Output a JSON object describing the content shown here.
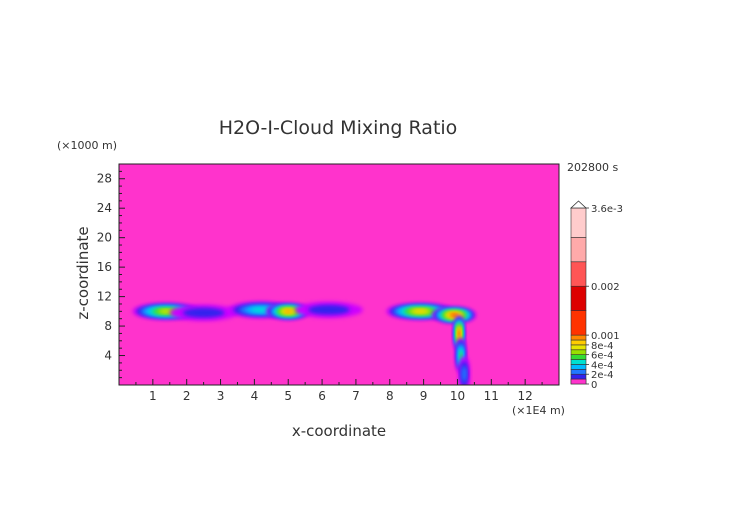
{
  "chart_data": {
    "type": "heatmap",
    "title": "H2O-I-Cloud Mixing Ratio",
    "time_label": "202800 s",
    "xlabel": "x-coordinate",
    "ylabel": "z-coordinate",
    "x_unit": "(×1E4 m)",
    "y_unit": "(×1000 m)",
    "xlim": [
      0,
      13
    ],
    "ylim": [
      0,
      30
    ],
    "x_ticks": [
      1,
      2,
      3,
      4,
      5,
      6,
      7,
      8,
      9,
      10,
      11,
      12
    ],
    "y_ticks": [
      4,
      8,
      12,
      16,
      20,
      24,
      28
    ],
    "grid": false,
    "background_color": "#ff33cc",
    "colorbar": {
      "placement": "right",
      "labels": [
        "0",
        "2e-4",
        "4e-4",
        "6e-4",
        "8e-4",
        "0.001",
        "0.002",
        "3.6e-3"
      ],
      "label_values": [
        0,
        0.0002,
        0.0004,
        0.0006,
        0.0008,
        0.001,
        0.002,
        0.0036
      ],
      "levels": [
        0,
        0.0001,
        0.0002,
        0.0003,
        0.0004,
        0.0005,
        0.0006,
        0.0007,
        0.0008,
        0.0009,
        0.001,
        0.0015,
        0.002,
        0.0025,
        0.003,
        0.0036
      ],
      "colors": [
        "#ff33cc",
        "#cc00ff",
        "#3322ee",
        "#2277ff",
        "#00bbff",
        "#00e0d0",
        "#33dd33",
        "#99e000",
        "#e6e600",
        "#ffcc00",
        "#ff8800",
        "#ff3300",
        "#dd0000",
        "#ff5555",
        "#ffaaaa",
        "#ffcccc"
      ]
    },
    "features": [
      {
        "x": 1.4,
        "z": 10.0,
        "value": 0.0008
      },
      {
        "x": 2.5,
        "z": 9.8,
        "value": 0.0002
      },
      {
        "x": 4.2,
        "z": 10.2,
        "value": 0.0005
      },
      {
        "x": 5.0,
        "z": 10.0,
        "value": 0.0011
      },
      {
        "x": 6.2,
        "z": 10.2,
        "value": 0.0002
      },
      {
        "x": 8.9,
        "z": 10.0,
        "value": 0.0009
      },
      {
        "x": 9.9,
        "z": 9.5,
        "value": 0.0018
      },
      {
        "x": 10.05,
        "z": 7.0,
        "value": 0.0016
      },
      {
        "x": 10.1,
        "z": 4.0,
        "value": 0.0006
      },
      {
        "x": 10.2,
        "z": 1.5,
        "value": 0.0003
      }
    ]
  }
}
